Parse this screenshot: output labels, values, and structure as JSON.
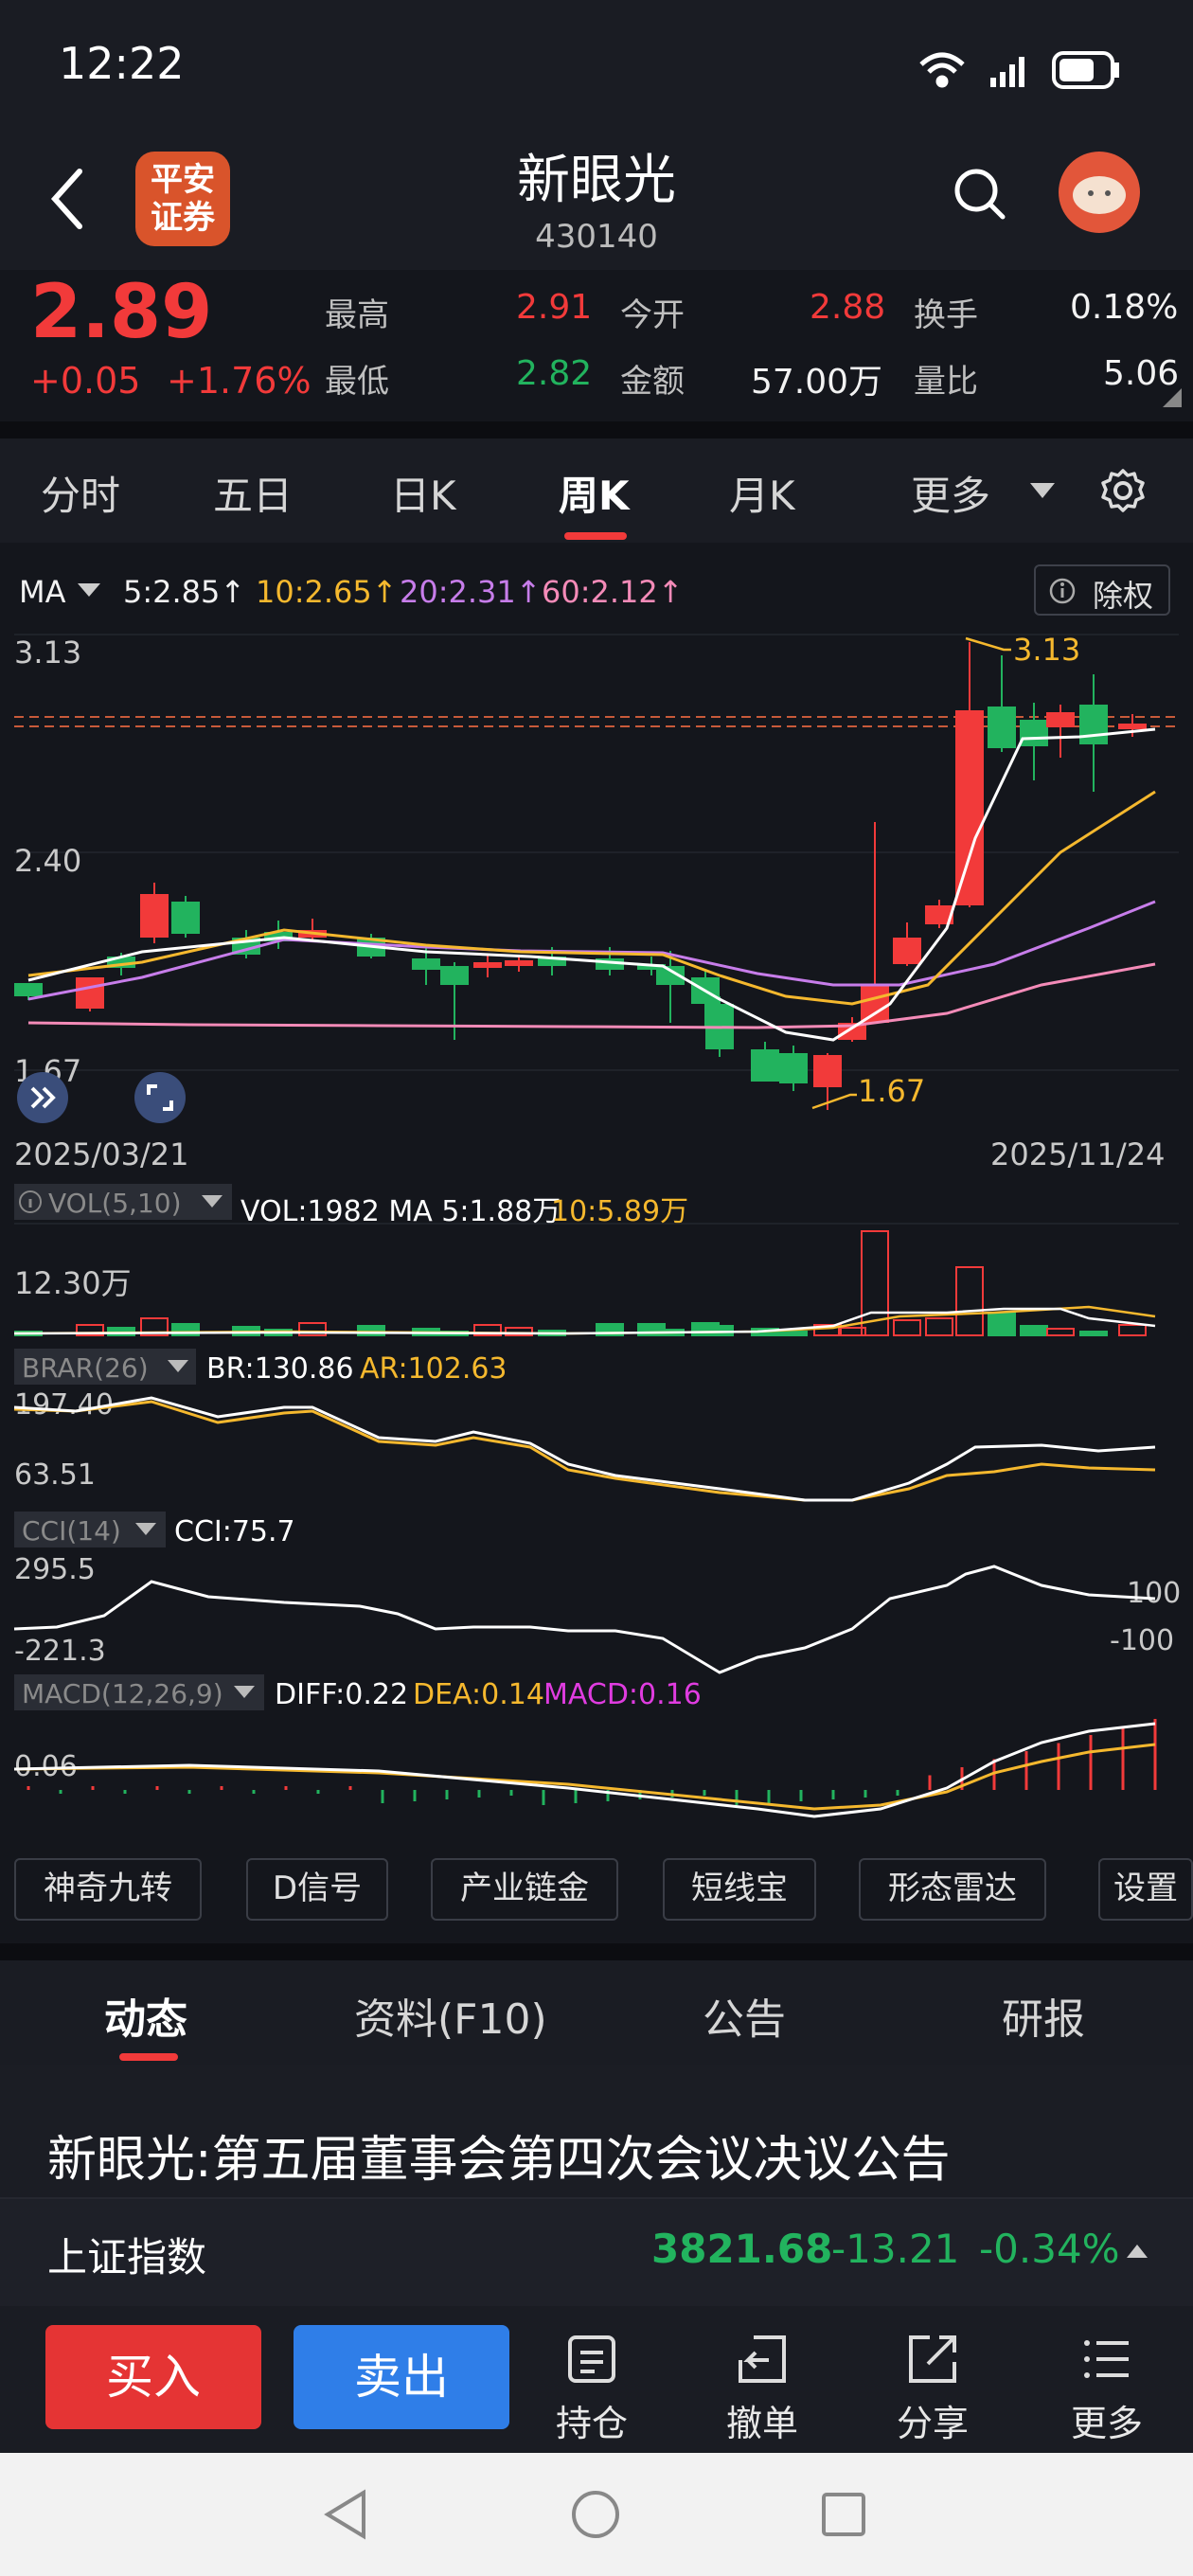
{
  "status_bar": {
    "time": "12:22"
  },
  "header": {
    "logo_text_1": "平安",
    "logo_text_2": "证券",
    "stock_name": "新眼光",
    "stock_code": "430140"
  },
  "quote": {
    "price": "2.89",
    "change": "+0.05",
    "change_pct": "+1.76%",
    "high_label": "最高",
    "high": "2.91",
    "open_label": "今开",
    "open": "2.88",
    "turnover_label": "换手",
    "turnover": "0.18%",
    "low_label": "最低",
    "low": "2.82",
    "amount_label": "金额",
    "amount": "57.00万",
    "vol_ratio_label": "量比",
    "vol_ratio": "5.06"
  },
  "tabs": [
    "分时",
    "五日",
    "日K",
    "周K",
    "月K",
    "更多"
  ],
  "active_tab": "周K",
  "chart": {
    "ma_label": "MA",
    "ma5": "5:2.85↑",
    "ma10": "10:2.65↑",
    "ma20": "20:2.31↑",
    "ma60": "60:2.12↑",
    "exright": "除权",
    "y_top": "3.13",
    "y_mid": "2.40",
    "y_bottom": "1.67",
    "high_mark": "3.13",
    "low_mark": "1.67",
    "date_start": "2025/03/21",
    "date_end": "2025/11/24",
    "vol_label": "VOL(5,10)",
    "vol_values": "VOL:1982 MA 5:1.88万",
    "vol_ma10": "10:5.89万",
    "vol_axis": "12.30万",
    "brar_label": "BRAR(26)",
    "br": "BR:130.86",
    "ar": "AR:102.63",
    "brar_axis_top": "197.40",
    "brar_axis_bottom": "63.51",
    "cci_label": "CCI(14)",
    "cci": "CCI:75.7",
    "cci_axis_top": "295.5",
    "cci_axis_bottom": "-221.3",
    "cci_100": "100",
    "cci_m100": "-100",
    "macd_label": "MACD(12,26,9)",
    "diff": "DIFF:0.22",
    "dea": "DEA:0.14",
    "macd": "MACD:0.16",
    "macd_axis": "0.06"
  },
  "colors": {
    "up": "#f23a3a",
    "down": "#22b35e",
    "ma5": "#ffffff",
    "ma10": "#f5b82e",
    "ma20": "#c77dea",
    "ma60": "#f48bb8"
  },
  "tools": [
    "神奇九转",
    "D信号",
    "产业链金",
    "短线宝",
    "形态雷达",
    "设置"
  ],
  "news_tabs": [
    "动态",
    "资料(F10)",
    "公告",
    "研报"
  ],
  "news_title": "新眼光:第五届董事会第四次会议决议公告",
  "index": {
    "name": "上证指数",
    "value": "3821.68",
    "change": "-13.21",
    "change_pct": "-0.34%"
  },
  "bottom": {
    "buy": "买入",
    "sell": "卖出",
    "holdings": "持仓",
    "cancel": "撤单",
    "share": "分享",
    "more": "更多"
  }
}
